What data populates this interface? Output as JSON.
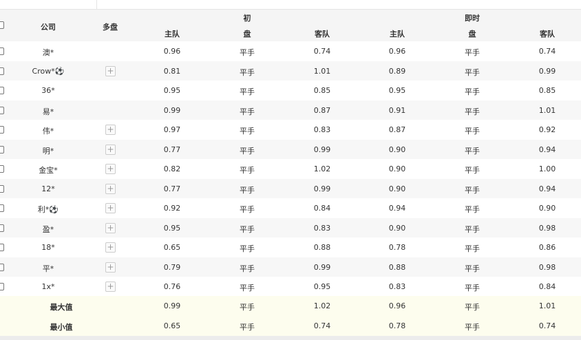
{
  "header": {
    "company": "公司",
    "multi": "多盘",
    "initial": "初",
    "live": "即时",
    "home": "主队",
    "handicap": "盘",
    "away": "客队"
  },
  "rows": [
    {
      "company": "澳*",
      "multi": false,
      "ih": "0.96",
      "ip": "平手",
      "ia": "0.74",
      "lh": "0.96",
      "lp": "平手",
      "la": "0.74"
    },
    {
      "company": "Crow*⚽",
      "multi": true,
      "ih": "0.81",
      "ip": "平手",
      "ia": "1.01",
      "lh": "0.89",
      "lp": "平手",
      "la": "0.99"
    },
    {
      "company": "36*",
      "multi": false,
      "ih": "0.95",
      "ip": "平手",
      "ia": "0.85",
      "lh": "0.95",
      "lp": "平手",
      "la": "0.85"
    },
    {
      "company": "易*",
      "multi": false,
      "ih": "0.99",
      "ip": "平手",
      "ia": "0.87",
      "lh": "0.91",
      "lp": "平手",
      "la": "1.01"
    },
    {
      "company": "伟*",
      "multi": true,
      "ih": "0.97",
      "ip": "平手",
      "ia": "0.83",
      "lh": "0.87",
      "lp": "平手",
      "la": "0.92"
    },
    {
      "company": "明*",
      "multi": true,
      "ih": "0.77",
      "ip": "平手",
      "ia": "0.99",
      "lh": "0.90",
      "lp": "平手",
      "la": "0.94"
    },
    {
      "company": "金宝*",
      "multi": true,
      "ih": "0.82",
      "ip": "平手",
      "ia": "1.02",
      "lh": "0.90",
      "lp": "平手",
      "la": "1.00"
    },
    {
      "company": "12*",
      "multi": true,
      "ih": "0.77",
      "ip": "平手",
      "ia": "0.99",
      "lh": "0.90",
      "lp": "平手",
      "la": "0.94"
    },
    {
      "company": "利*⚽",
      "multi": true,
      "ih": "0.92",
      "ip": "平手",
      "ia": "0.84",
      "lh": "0.94",
      "lp": "平手",
      "la": "0.90"
    },
    {
      "company": "盈*",
      "multi": true,
      "ih": "0.95",
      "ip": "平手",
      "ia": "0.83",
      "lh": "0.90",
      "lp": "平手",
      "la": "0.98"
    },
    {
      "company": "18*",
      "multi": true,
      "ih": "0.65",
      "ip": "平手",
      "ia": "0.88",
      "lh": "0.78",
      "lp": "平手",
      "la": "0.86"
    },
    {
      "company": "平*",
      "multi": true,
      "ih": "0.79",
      "ip": "平手",
      "ia": "0.99",
      "lh": "0.88",
      "lp": "平手",
      "la": "0.98"
    },
    {
      "company": "1x*",
      "multi": true,
      "ih": "0.76",
      "ip": "平手",
      "ia": "0.95",
      "lh": "0.83",
      "lp": "平手",
      "la": "0.84"
    }
  ],
  "summary": [
    {
      "label": "最大值",
      "ih": "0.99",
      "ip": "平手",
      "ia": "1.02",
      "lh": "0.96",
      "lp": "平手",
      "la": "1.01"
    },
    {
      "label": "最小值",
      "ih": "0.65",
      "ip": "平手",
      "ia": "0.74",
      "lh": "0.78",
      "lp": "平手",
      "la": "0.74"
    }
  ],
  "icons": {
    "multi": "plus-icon",
    "checkbox": "checkbox"
  },
  "colors": {
    "header_bg": "#f5f5f5",
    "row_alt": "#f7f7f7",
    "summary_bg": "#fdfdee"
  }
}
